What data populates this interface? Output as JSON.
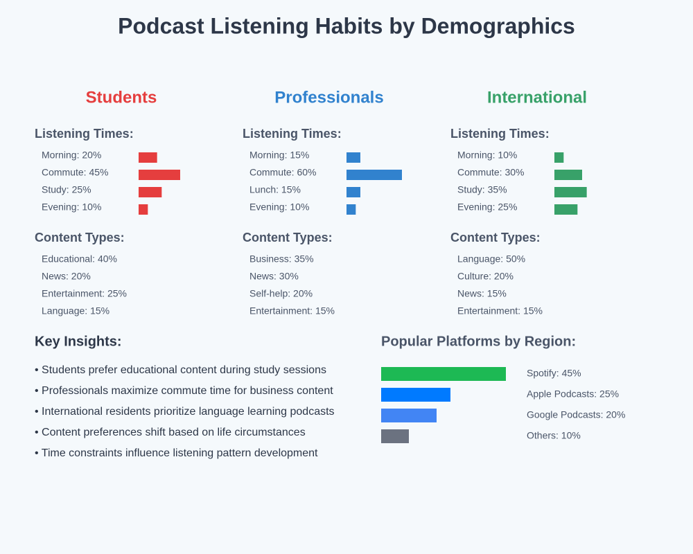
{
  "title": "Podcast Listening Habits by Demographics",
  "groups": [
    {
      "name": "Students",
      "color": "#e53e3e",
      "times_heading": "Listening Times:",
      "times": [
        {
          "label": "Morning: 20%",
          "value": 20
        },
        {
          "label": "Commute: 45%",
          "value": 45
        },
        {
          "label": "Study: 25%",
          "value": 25
        },
        {
          "label": "Evening: 10%",
          "value": 10
        }
      ],
      "content_heading": "Content Types:",
      "content": [
        "Educational: 40%",
        "News: 20%",
        "Entertainment: 25%",
        "Language: 15%"
      ]
    },
    {
      "name": "Professionals",
      "color": "#3182ce",
      "times_heading": "Listening Times:",
      "times": [
        {
          "label": "Morning: 15%",
          "value": 15
        },
        {
          "label": "Commute: 60%",
          "value": 60
        },
        {
          "label": "Lunch: 15%",
          "value": 15
        },
        {
          "label": "Evening: 10%",
          "value": 10
        }
      ],
      "content_heading": "Content Types:",
      "content": [
        "Business: 35%",
        "News: 30%",
        "Self-help: 20%",
        "Entertainment: 15%"
      ]
    },
    {
      "name": "International",
      "color": "#38a169",
      "times_heading": "Listening Times:",
      "times": [
        {
          "label": "Morning: 10%",
          "value": 10
        },
        {
          "label": "Commute: 30%",
          "value": 30
        },
        {
          "label": "Study: 35%",
          "value": 35
        },
        {
          "label": "Evening: 25%",
          "value": 25
        }
      ],
      "content_heading": "Content Types:",
      "content": [
        "Language: 50%",
        "Culture: 20%",
        "News: 15%",
        "Entertainment: 15%"
      ]
    }
  ],
  "insights": {
    "heading": "Key Insights:",
    "items": [
      "• Students prefer educational content during study sessions",
      "• Professionals maximize commute time for business content",
      "• International residents prioritize language learning podcasts",
      "• Content preferences shift based on life circumstances",
      "• Time constraints influence listening pattern development"
    ]
  },
  "platforms": {
    "heading": "Popular Platforms by Region:",
    "items": [
      {
        "label": "Spotify: 45%",
        "value": 45,
        "color": "#1db954"
      },
      {
        "label": "Apple Podcasts: 25%",
        "value": 25,
        "color": "#007aff"
      },
      {
        "label": "Google Podcasts: 20%",
        "value": 20,
        "color": "#4285f4"
      },
      {
        "label": "Others: 10%",
        "value": 10,
        "color": "#6b7280"
      }
    ]
  }
}
